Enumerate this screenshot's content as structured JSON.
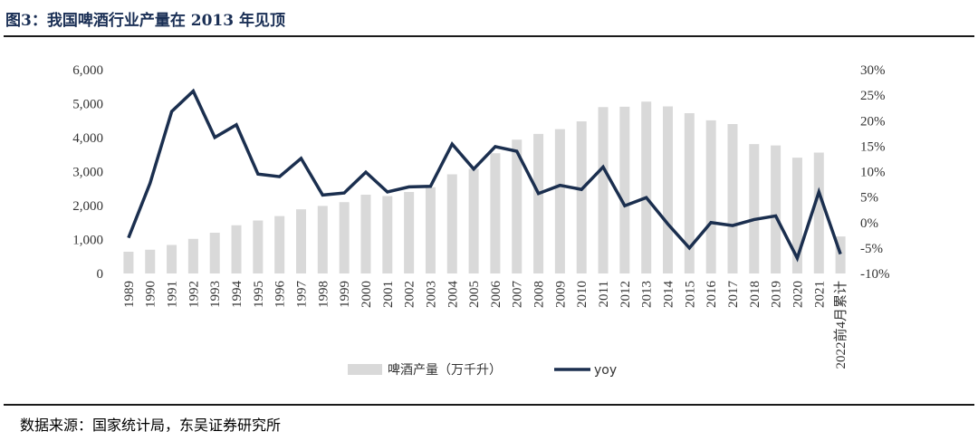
{
  "header": {
    "title": "图3：我国啤酒行业产量在 2013 年见顶"
  },
  "footer": {
    "source": "数据来源：国家统计局，东吴证券研究所"
  },
  "colors": {
    "bar": "#d9d9d9",
    "line": "#1b2f4f",
    "text": "#333333"
  },
  "chart_data": {
    "type": "bar+line",
    "title": "我国啤酒行业产量在 2013 年见顶",
    "categories": [
      "1989",
      "1990",
      "1991",
      "1992",
      "1993",
      "1994",
      "1995",
      "1996",
      "1997",
      "1998",
      "1999",
      "2000",
      "2001",
      "2002",
      "2003",
      "2004",
      "2005",
      "2006",
      "2007",
      "2008",
      "2009",
      "2010",
      "2011",
      "2012",
      "2013",
      "2014",
      "2015",
      "2016",
      "2017",
      "2018",
      "2019",
      "2020",
      "2021",
      "2022前4月累计"
    ],
    "series": [
      {
        "name": "啤酒产量（万千升）",
        "type": "bar",
        "axis": "left",
        "values": [
          640,
          700,
          840,
          1020,
          1200,
          1420,
          1560,
          1690,
          1890,
          1990,
          2100,
          2320,
          2280,
          2400,
          2540,
          2920,
          3080,
          3540,
          3940,
          4110,
          4250,
          4480,
          4900,
          4910,
          5060,
          4920,
          4720,
          4510,
          4400,
          3810,
          3770,
          3410,
          3560,
          1090
        ]
      },
      {
        "name": "yoy",
        "type": "line",
        "axis": "right",
        "values": [
          -3,
          7.7,
          21.8,
          25.8,
          16.7,
          19.2,
          9.5,
          9,
          12.6,
          5.4,
          5.8,
          9.9,
          6,
          7,
          7.1,
          15.4,
          10.5,
          14.9,
          14,
          5.7,
          7.3,
          6.5,
          10.9,
          3.3,
          4.9,
          -0.3,
          -5,
          0,
          -0.6,
          0.6,
          1.3,
          -7,
          6,
          -6.2
        ]
      }
    ],
    "y_left": {
      "ylim": [
        0,
        6000
      ],
      "ticks": [
        "0",
        "1,000",
        "2,000",
        "3,000",
        "4,000",
        "5,000",
        "6,000"
      ]
    },
    "y_right": {
      "ylim": [
        -10,
        30
      ],
      "ticks": [
        "-10%",
        "-5%",
        "0%",
        "5%",
        "10%",
        "15%",
        "20%",
        "25%",
        "30%"
      ]
    },
    "legend": [
      {
        "label": "啤酒产量（万千升）",
        "kind": "bar"
      },
      {
        "label": "yoy",
        "kind": "line"
      }
    ],
    "legend_position": "bottom-center"
  }
}
